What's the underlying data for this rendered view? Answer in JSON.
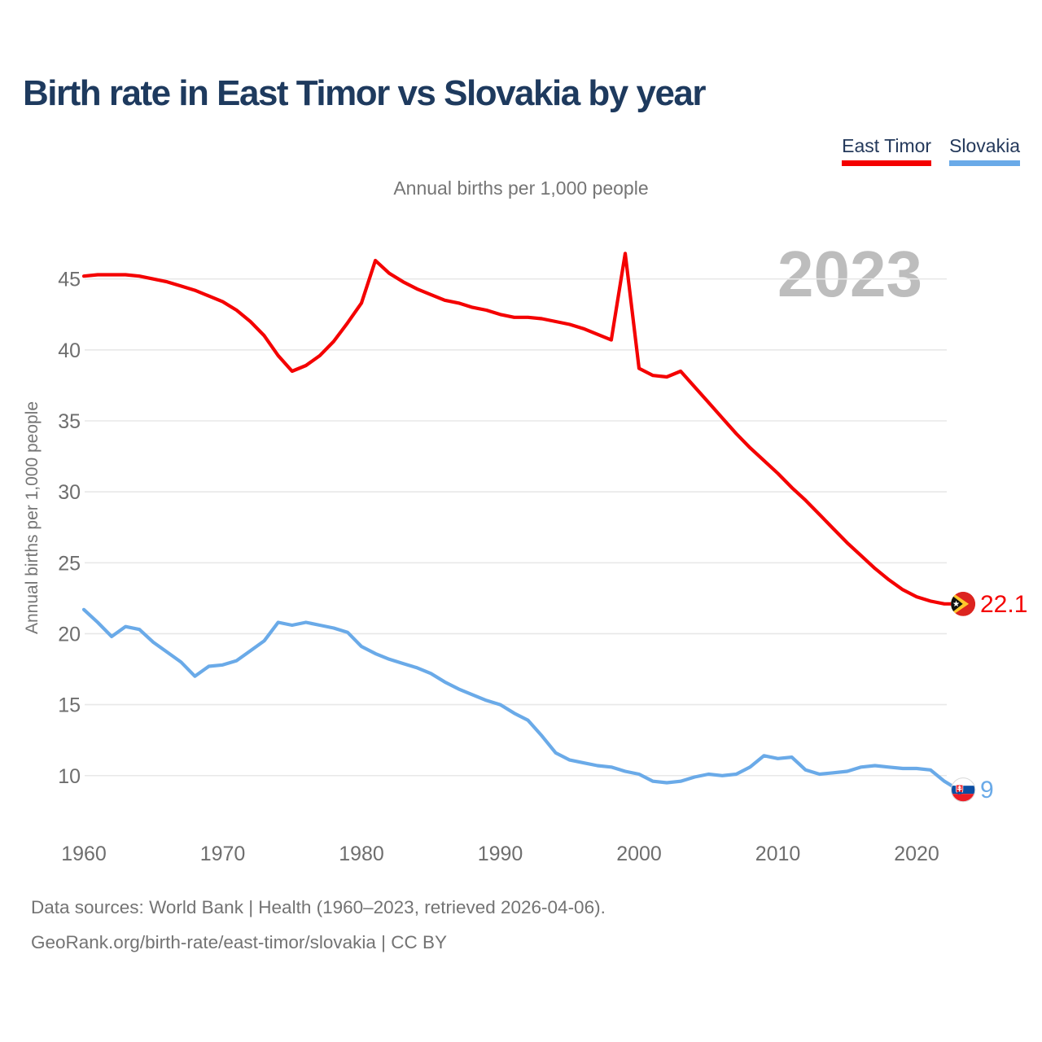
{
  "header": {
    "title": "Birth rate in East Timor vs Slovakia by year",
    "subtitle": "Annual births per 1,000 people"
  },
  "watermark": "2023",
  "legend": [
    {
      "label": "East Timor",
      "color": "#f40000"
    },
    {
      "label": "Slovakia",
      "color": "#6aaae8"
    }
  ],
  "footer": {
    "line1": "Data sources: World Bank | Health (1960–2023, retrieved 2026-04-06).",
    "line2": "GeoRank.org/birth-rate/east-timor/slovakia | CC BY"
  },
  "chart_data": {
    "type": "line",
    "title": "Birth rate in East Timor vs Slovakia by year",
    "subtitle": "Annual births per 1,000 people",
    "xlabel": "",
    "ylabel": "Annual births per 1,000 people",
    "grid": "horizontal",
    "legend_position": "top-right",
    "xlim": [
      1960,
      2023
    ],
    "ylim": [
      8,
      47.5
    ],
    "x_ticks": [
      1960,
      1970,
      1980,
      1990,
      2000,
      2010,
      2020
    ],
    "y_ticks": [
      10,
      15,
      20,
      25,
      30,
      35,
      40,
      45
    ],
    "x": [
      1960,
      1961,
      1962,
      1963,
      1964,
      1965,
      1966,
      1967,
      1968,
      1969,
      1970,
      1971,
      1972,
      1973,
      1974,
      1975,
      1976,
      1977,
      1978,
      1979,
      1980,
      1981,
      1982,
      1983,
      1984,
      1985,
      1986,
      1987,
      1988,
      1989,
      1990,
      1991,
      1992,
      1993,
      1994,
      1995,
      1996,
      1997,
      1998,
      1999,
      2000,
      2001,
      2002,
      2003,
      2004,
      2005,
      2006,
      2007,
      2008,
      2009,
      2010,
      2011,
      2012,
      2013,
      2014,
      2015,
      2016,
      2017,
      2018,
      2019,
      2020,
      2021,
      2022,
      2023
    ],
    "series": [
      {
        "name": "East Timor",
        "color": "#f40000",
        "flag": "east-timor",
        "end_label": "22.1",
        "values": [
          45.2,
          45.3,
          45.3,
          45.3,
          45.2,
          45.0,
          44.8,
          44.5,
          44.2,
          43.8,
          43.4,
          42.8,
          42.0,
          41.0,
          39.6,
          38.5,
          38.9,
          39.6,
          40.6,
          41.9,
          43.3,
          46.3,
          45.4,
          44.8,
          44.3,
          43.9,
          43.5,
          43.3,
          43.0,
          42.8,
          42.5,
          42.3,
          42.3,
          42.2,
          42.0,
          41.8,
          41.5,
          41.1,
          40.7,
          46.8,
          38.7,
          38.2,
          38.1,
          38.5,
          37.4,
          36.3,
          35.2,
          34.1,
          33.1,
          32.2,
          31.3,
          30.3,
          29.4,
          28.4,
          27.4,
          26.4,
          25.5,
          24.6,
          23.8,
          23.1,
          22.6,
          22.3,
          22.1,
          22.1
        ]
      },
      {
        "name": "Slovakia",
        "color": "#6aaae8",
        "flag": "slovakia",
        "end_label": "9",
        "values": [
          21.7,
          20.8,
          19.8,
          20.5,
          20.3,
          19.4,
          18.7,
          18.0,
          17.0,
          17.7,
          17.8,
          18.1,
          18.8,
          19.5,
          20.8,
          20.6,
          20.8,
          20.6,
          20.4,
          20.1,
          19.1,
          18.6,
          18.2,
          17.9,
          17.6,
          17.2,
          16.6,
          16.1,
          15.7,
          15.3,
          15.0,
          14.4,
          13.9,
          12.8,
          11.6,
          11.1,
          10.9,
          10.7,
          10.6,
          10.3,
          10.1,
          9.6,
          9.5,
          9.6,
          9.9,
          10.1,
          10.0,
          10.1,
          10.6,
          11.4,
          11.2,
          11.3,
          10.4,
          10.1,
          10.2,
          10.3,
          10.6,
          10.7,
          10.6,
          10.5,
          10.5,
          10.4,
          9.6,
          9.0
        ]
      }
    ]
  }
}
